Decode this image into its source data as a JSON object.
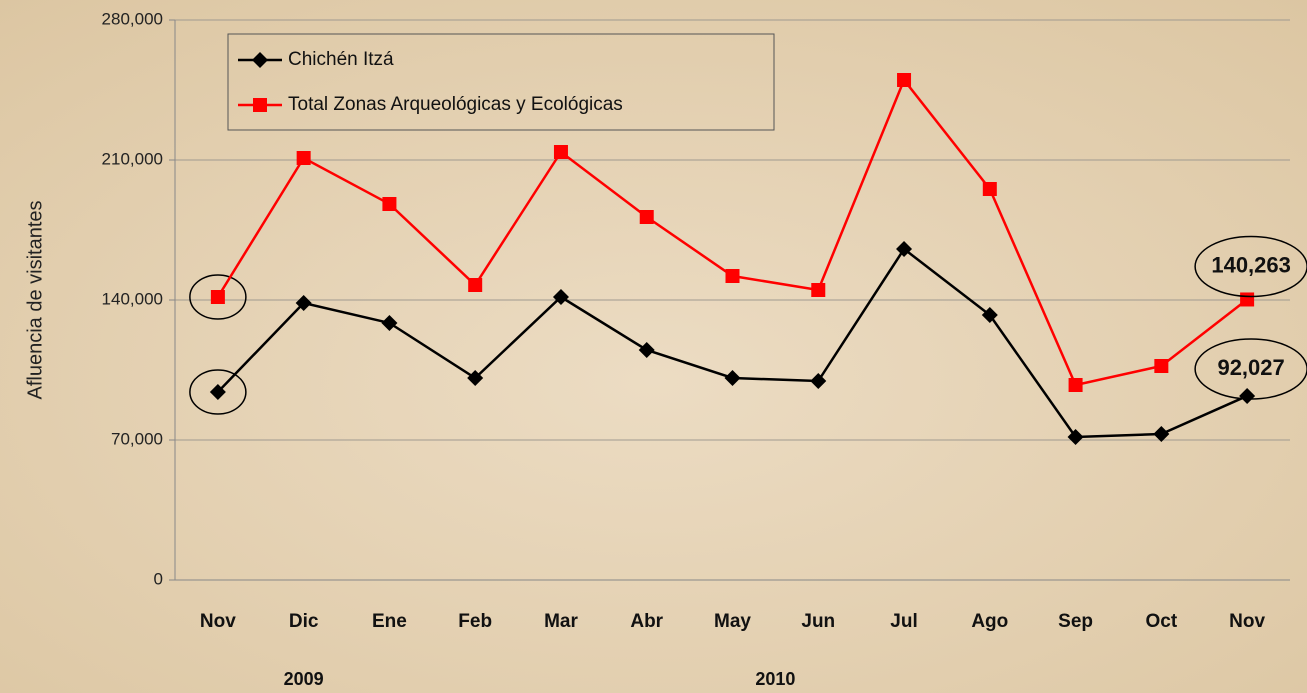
{
  "chart_data": {
    "type": "line",
    "y_label": "Afluencia de visitantes",
    "categories": [
      "Nov",
      "Dic",
      "Ene",
      "Feb",
      "Mar",
      "Abr",
      "May",
      "Jun",
      "Jul",
      "Ago",
      "Sep",
      "Oct",
      "Nov"
    ],
    "year_labels": [
      "2009",
      "2010"
    ],
    "series": [
      {
        "name": "Chichén Itzá",
        "color": "#000000",
        "marker": "diamond",
        "values": [
          94000,
          138500,
          128500,
          101000,
          141500,
          115000,
          101000,
          99500,
          165500,
          132500,
          71500,
          73000,
          92027
        ],
        "value_labels": [
          null,
          null,
          null,
          null,
          null,
          null,
          null,
          null,
          null,
          null,
          null,
          null,
          "92,027"
        ]
      },
      {
        "name": "Total Zonas Arqueológicas y Ecológicas",
        "color": "#ff0000",
        "marker": "square",
        "values": [
          141500,
          211000,
          188000,
          147500,
          214000,
          181500,
          152000,
          145000,
          250000,
          195500,
          97500,
          107000,
          140263
        ],
        "value_labels": [
          null,
          null,
          null,
          null,
          null,
          null,
          null,
          null,
          null,
          null,
          null,
          null,
          "140,263"
        ]
      }
    ],
    "ylim": [
      0,
      280000
    ],
    "yticks": [
      0,
      {
        "value": 70000,
        "label": "70,000"
      },
      {
        "value": 140000,
        "label": "140,000"
      },
      {
        "value": 210000,
        "label": "210,000"
      },
      {
        "value": 280000,
        "label": "280,000"
      }
    ],
    "grid": true,
    "legend": "top-left"
  }
}
